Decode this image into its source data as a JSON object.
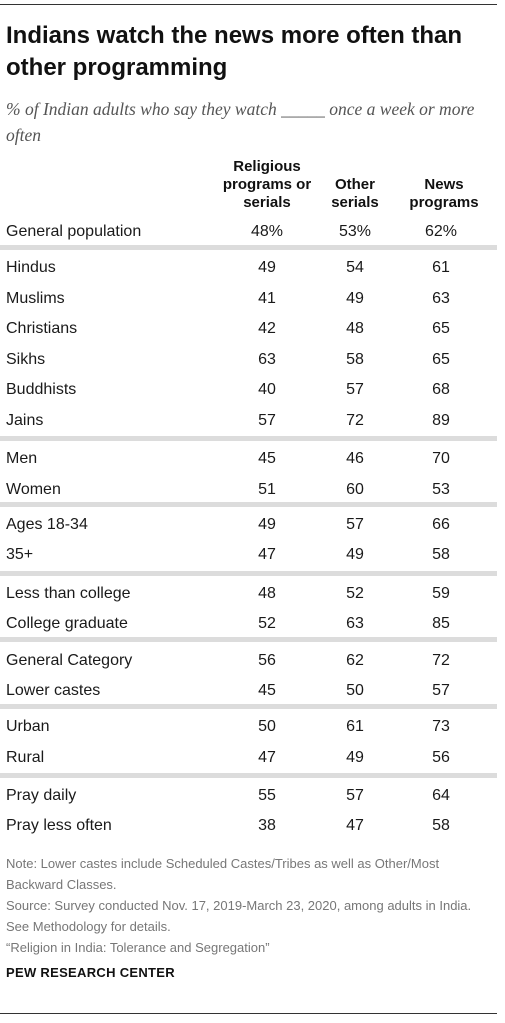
{
  "title": "Indians watch the news more often than other programming",
  "subtitle": "% of Indian adults who say they watch _____ once a week or more often",
  "columns": [
    "Religious\nprograms or\nserials",
    "Other\nserials",
    "News\nprograms"
  ],
  "chart_data": {
    "type": "table",
    "columns": [
      "Religious programs or serials",
      "Other serials",
      "News programs"
    ],
    "rows": [
      {
        "label": "General population",
        "values": [
          "48%",
          "53%",
          "62%"
        ]
      },
      {
        "label": "Hindus",
        "values": [
          "49",
          "54",
          "61"
        ]
      },
      {
        "label": "Muslims",
        "values": [
          "41",
          "49",
          "63"
        ]
      },
      {
        "label": "Christians",
        "values": [
          "42",
          "48",
          "65"
        ]
      },
      {
        "label": "Sikhs",
        "values": [
          "63",
          "58",
          "65"
        ]
      },
      {
        "label": "Buddhists",
        "values": [
          "40",
          "57",
          "68"
        ]
      },
      {
        "label": "Jains",
        "values": [
          "57",
          "72",
          "89"
        ]
      },
      {
        "label": "Men",
        "values": [
          "45",
          "46",
          "70"
        ]
      },
      {
        "label": "Women",
        "values": [
          "51",
          "60",
          "53"
        ]
      },
      {
        "label": "Ages 18-34",
        "values": [
          "49",
          "57",
          "66"
        ]
      },
      {
        "label": "35+",
        "values": [
          "47",
          "49",
          "58"
        ]
      },
      {
        "label": "Less than college",
        "values": [
          "48",
          "52",
          "59"
        ]
      },
      {
        "label": "College graduate",
        "values": [
          "52",
          "63",
          "85"
        ]
      },
      {
        "label": "General Category",
        "values": [
          "56",
          "62",
          "72"
        ]
      },
      {
        "label": "Lower castes",
        "values": [
          "45",
          "50",
          "57"
        ]
      },
      {
        "label": "Urban",
        "values": [
          "50",
          "61",
          "73"
        ]
      },
      {
        "label": "Rural",
        "values": [
          "47",
          "49",
          "56"
        ]
      },
      {
        "label": "Pray daily",
        "values": [
          "55",
          "57",
          "64"
        ]
      },
      {
        "label": "Pray less often",
        "values": [
          "38",
          "47",
          "58"
        ]
      }
    ]
  },
  "notes": [
    "Note: Lower castes include Scheduled Castes/Tribes as well as Other/Most Backward Classes.",
    "Source: Survey conducted Nov. 17, 2019-March 23, 2020, among adults in India. See Methodology for details.",
    "“Religion in India: Tolerance and Segregation”"
  ],
  "brand": "PEW RESEARCH CENTER",
  "colors": {
    "separator": "#dcdcdc",
    "text": "#1a1a1a",
    "note": "#777777"
  }
}
